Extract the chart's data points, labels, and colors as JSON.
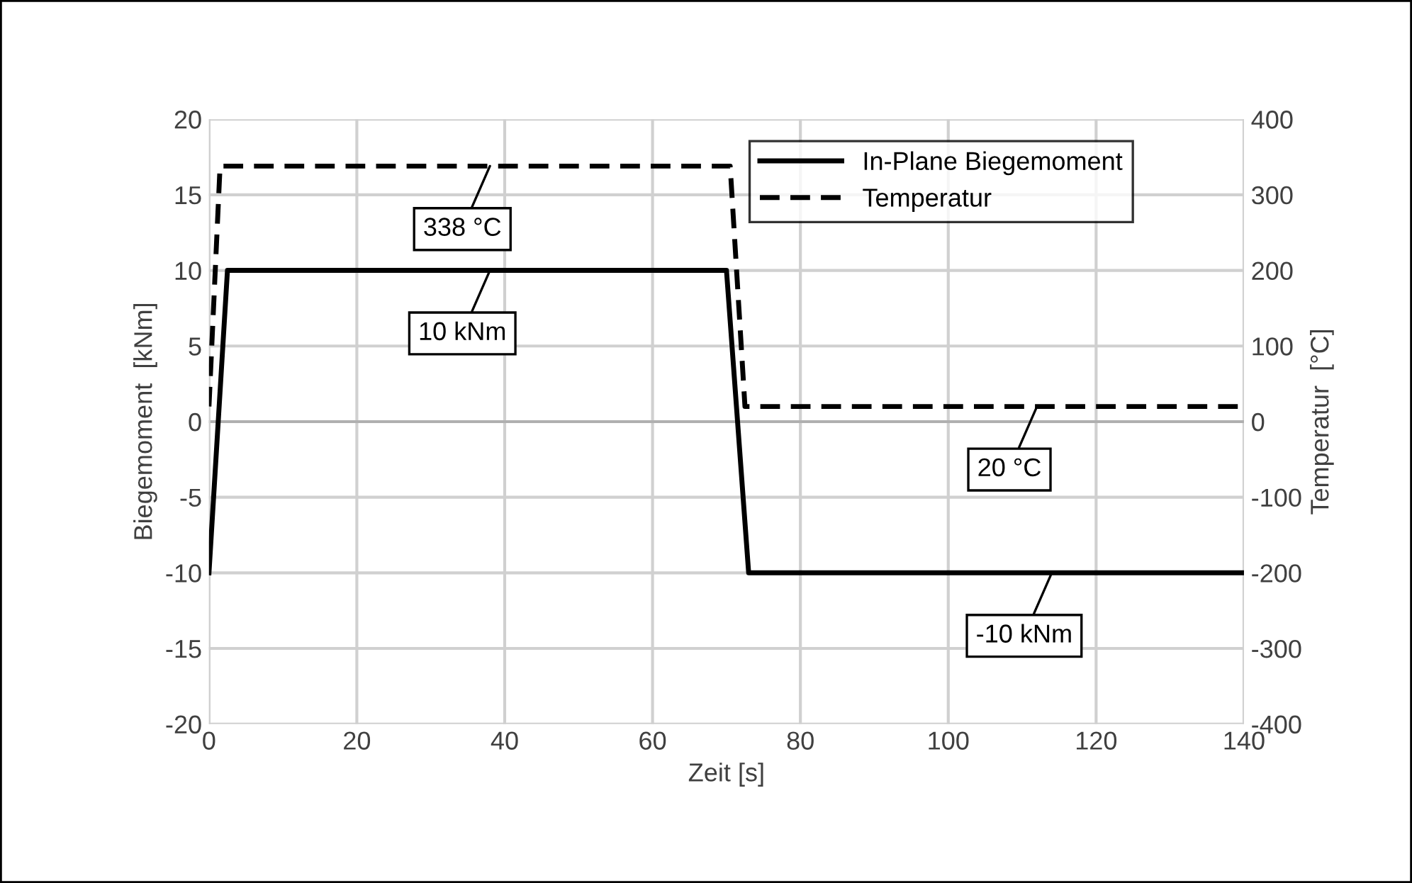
{
  "chart_data": {
    "type": "line",
    "xlabel": "Zeit [s]",
    "ylabel": "Biegemoment  [kNm]",
    "y2label": "Temperatur  [°C]",
    "series": [
      {
        "name": "In-Plane Biegemoment",
        "color": "#000000",
        "x": [
          0,
          2.5,
          70,
          73,
          140
        ],
        "values": [
          -10,
          10,
          10,
          -10,
          -10
        ],
        "line_style": "solid"
      },
      {
        "name": "Temperatur",
        "color": "#000000",
        "x": [
          0,
          1.5,
          70.5,
          72.5,
          140
        ],
        "values": [
          20,
          338,
          338,
          20,
          20
        ],
        "line_style": "dashed",
        "axis": "y2"
      }
    ],
    "xlim": [
      0,
      140
    ],
    "xticks": [
      0,
      20,
      40,
      60,
      80,
      100,
      120,
      140
    ],
    "ylim": [
      -20,
      20
    ],
    "yticks": [
      -20,
      -15,
      -10,
      -5,
      0,
      5,
      10,
      15,
      20
    ],
    "y2lim": [
      -400,
      400
    ],
    "y2ticks": [
      -400,
      -300,
      -200,
      -100,
      0,
      100,
      200,
      300,
      400
    ],
    "grid": true,
    "legend": "top right",
    "marker": "none",
    "annotations": [
      {
        "text": "338 °C",
        "x": 38,
        "y": 16.9
      },
      {
        "text": "10 kNm",
        "x": 38,
        "y": 10
      },
      {
        "text": "20 °C",
        "x": 112,
        "y": 1
      },
      {
        "text": "-10 kNm",
        "x": 114,
        "y": -10
      }
    ]
  }
}
